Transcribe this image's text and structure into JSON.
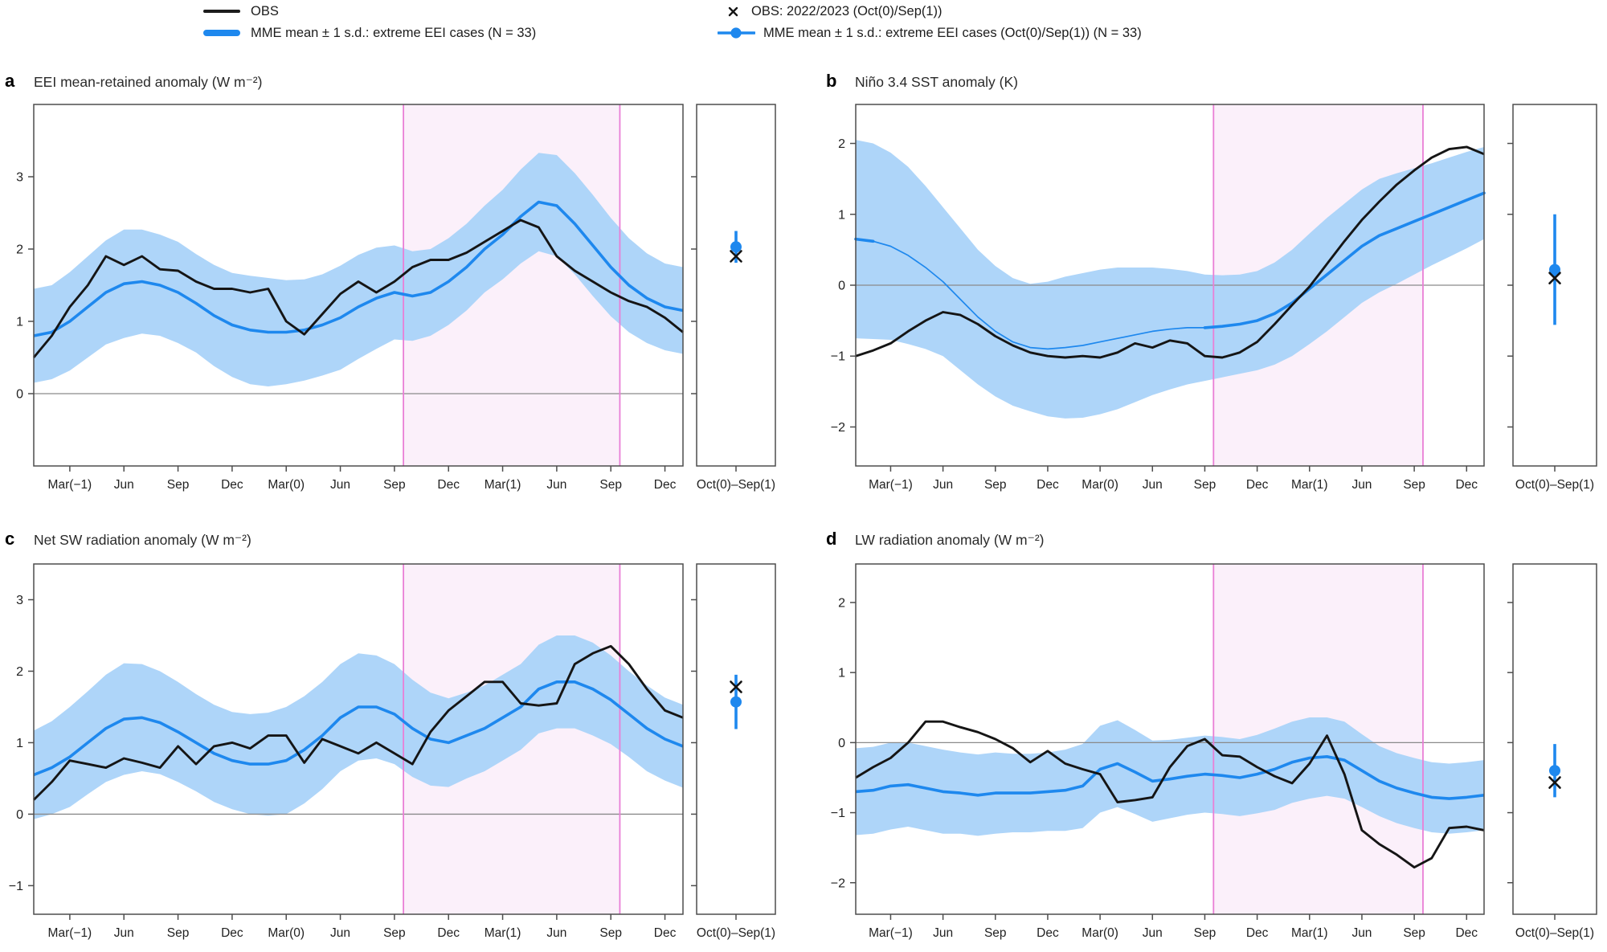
{
  "colors": {
    "obs_line": "#151515",
    "mme_line": "#1E88EE",
    "mme_band": "#AED5F9",
    "highlight_fill": "#FBF0FA",
    "highlight_edge": "#E97FD6",
    "zero_line": "#8a8a8a",
    "axis": "#4d4d4d",
    "text": "#222222"
  },
  "legend": {
    "items": [
      {
        "id": "obs",
        "marker": "black-line",
        "label": "OBS"
      },
      {
        "id": "mme",
        "marker": "blue-thick-line",
        "label": "MME mean ± 1 s.d.: extreme EEI cases (N = 33)"
      },
      {
        "id": "obs-point",
        "marker": "black-x",
        "label": "OBS: 2022/2023 (Oct(0)/Sep(1))"
      },
      {
        "id": "mme-point",
        "marker": "blue-dot-line",
        "label": "MME mean ± 1 s.d.: extreme EEI cases (Oct(0)/Sep(1)) (N = 33)"
      }
    ]
  },
  "chart_data": [
    {
      "type": "line",
      "panel_label": "a",
      "title": "EEI mean-retained anomaly (W m⁻²)",
      "n_months": 37,
      "x_tick_indices": [
        2,
        5,
        8,
        11,
        14,
        17,
        20,
        23,
        26,
        29,
        32,
        35
      ],
      "x_tick_labels": [
        "Mar(−1)",
        "Jun",
        "Sep",
        "Dec",
        "Mar(0)",
        "Jun",
        "Sep",
        "Dec",
        "Mar(1)",
        "Jun",
        "Sep",
        "Dec"
      ],
      "ylim": [
        -1.0,
        4.0
      ],
      "yticks": [
        0,
        1,
        2,
        3
      ],
      "ytick_labels": [
        "0",
        "1",
        "2",
        "3"
      ],
      "highlight_span_months": [
        20.5,
        32.5
      ],
      "series": {
        "obs": [
          0.5,
          0.8,
          1.2,
          1.5,
          1.9,
          1.78,
          1.9,
          1.72,
          1.7,
          1.55,
          1.45,
          1.45,
          1.4,
          1.45,
          1.0,
          0.82,
          1.1,
          1.38,
          1.55,
          1.4,
          1.55,
          1.75,
          1.85,
          1.85,
          1.95,
          2.1,
          2.25,
          2.4,
          2.3,
          1.9,
          1.7,
          1.55,
          1.4,
          1.28,
          1.2,
          1.05,
          0.85
        ],
        "mme_mean": [
          0.8,
          0.85,
          1.0,
          1.2,
          1.4,
          1.52,
          1.55,
          1.5,
          1.4,
          1.25,
          1.08,
          0.95,
          0.88,
          0.85,
          0.85,
          0.88,
          0.95,
          1.05,
          1.2,
          1.32,
          1.4,
          1.35,
          1.4,
          1.55,
          1.75,
          2.0,
          2.2,
          2.45,
          2.65,
          2.6,
          2.35,
          2.05,
          1.75,
          1.5,
          1.32,
          1.2,
          1.15
        ],
        "mme_sd": [
          0.65,
          0.65,
          0.68,
          0.7,
          0.72,
          0.75,
          0.72,
          0.7,
          0.7,
          0.68,
          0.7,
          0.72,
          0.75,
          0.75,
          0.72,
          0.7,
          0.7,
          0.72,
          0.72,
          0.7,
          0.65,
          0.62,
          0.6,
          0.6,
          0.6,
          0.6,
          0.62,
          0.65,
          0.68,
          0.7,
          0.7,
          0.7,
          0.68,
          0.65,
          0.62,
          0.6,
          0.6
        ]
      },
      "thin_mme_segments": [],
      "side": {
        "label": "Oct(0)–Sep(1)",
        "mme_mean": 2.03,
        "mme_sd": 0.22,
        "obs": 1.9
      }
    },
    {
      "type": "line",
      "panel_label": "b",
      "title": "Niño 3.4 SST anomaly (K)",
      "n_months": 37,
      "x_tick_indices": [
        2,
        5,
        8,
        11,
        14,
        17,
        20,
        23,
        26,
        29,
        32,
        35
      ],
      "x_tick_labels": [
        "Mar(−1)",
        "Jun",
        "Sep",
        "Dec",
        "Mar(0)",
        "Jun",
        "Sep",
        "Dec",
        "Mar(1)",
        "Jun",
        "Sep",
        "Dec"
      ],
      "ylim": [
        -2.55,
        2.55
      ],
      "yticks": [
        -2,
        -1,
        0,
        1,
        2
      ],
      "ytick_labels": [
        "−2",
        "−1",
        "0",
        "1",
        "2"
      ],
      "highlight_span_months": [
        20.5,
        32.5
      ],
      "series": {
        "obs": [
          -1.0,
          -0.92,
          -0.82,
          -0.65,
          -0.5,
          -0.38,
          -0.42,
          -0.55,
          -0.72,
          -0.85,
          -0.95,
          -1.0,
          -1.02,
          -1.0,
          -1.02,
          -0.95,
          -0.82,
          -0.88,
          -0.78,
          -0.82,
          -1.0,
          -1.02,
          -0.95,
          -0.8,
          -0.55,
          -0.28,
          -0.02,
          0.3,
          0.62,
          0.92,
          1.18,
          1.42,
          1.62,
          1.8,
          1.92,
          1.95,
          1.85
        ],
        "mme_mean": [
          0.65,
          0.62,
          0.55,
          0.42,
          0.25,
          0.05,
          -0.2,
          -0.45,
          -0.65,
          -0.8,
          -0.88,
          -0.9,
          -0.88,
          -0.85,
          -0.8,
          -0.75,
          -0.7,
          -0.65,
          -0.62,
          -0.6,
          -0.6,
          -0.58,
          -0.55,
          -0.5,
          -0.4,
          -0.25,
          -0.05,
          0.15,
          0.35,
          0.55,
          0.7,
          0.8,
          0.9,
          1.0,
          1.1,
          1.2,
          1.3
        ],
        "mme_sd": [
          1.4,
          1.38,
          1.32,
          1.25,
          1.15,
          1.05,
          1.0,
          0.95,
          0.92,
          0.9,
          0.9,
          0.95,
          1.0,
          1.02,
          1.02,
          1.0,
          0.95,
          0.9,
          0.85,
          0.8,
          0.75,
          0.72,
          0.7,
          0.7,
          0.72,
          0.75,
          0.78,
          0.8,
          0.8,
          0.8,
          0.8,
          0.78,
          0.75,
          0.72,
          0.7,
          0.68,
          0.65
        ]
      },
      "thin_mme_segments": [
        [
          1,
          20
        ]
      ],
      "side": {
        "label": "Oct(0)–Sep(1)",
        "mme_mean": 0.22,
        "mme_sd": 0.78,
        "obs": 0.1
      }
    },
    {
      "type": "line",
      "panel_label": "c",
      "title": "Net SW radiation anomaly (W m⁻²)",
      "n_months": 37,
      "x_tick_indices": [
        2,
        5,
        8,
        11,
        14,
        17,
        20,
        23,
        26,
        29,
        32,
        35
      ],
      "x_tick_labels": [
        "Mar(−1)",
        "Jun",
        "Sep",
        "Dec",
        "Mar(0)",
        "Jun",
        "Sep",
        "Dec",
        "Mar(1)",
        "Jun",
        "Sep",
        "Dec"
      ],
      "ylim": [
        -1.4,
        3.5
      ],
      "yticks": [
        -1,
        0,
        1,
        2,
        3
      ],
      "ytick_labels": [
        "−1",
        "0",
        "1",
        "2",
        "3"
      ],
      "highlight_span_months": [
        20.5,
        32.5
      ],
      "series": {
        "obs": [
          0.2,
          0.45,
          0.75,
          0.7,
          0.65,
          0.78,
          0.72,
          0.65,
          0.95,
          0.7,
          0.95,
          1.0,
          0.92,
          1.1,
          1.1,
          0.72,
          1.05,
          0.95,
          0.85,
          1.0,
          0.85,
          0.7,
          1.15,
          1.45,
          1.65,
          1.85,
          1.85,
          1.55,
          1.52,
          1.55,
          2.1,
          2.25,
          2.35,
          2.1,
          1.75,
          1.45,
          1.35
        ],
        "mme_mean": [
          0.55,
          0.65,
          0.8,
          1.0,
          1.2,
          1.33,
          1.35,
          1.28,
          1.15,
          1.0,
          0.85,
          0.75,
          0.7,
          0.7,
          0.75,
          0.9,
          1.1,
          1.35,
          1.5,
          1.5,
          1.4,
          1.2,
          1.05,
          1.0,
          1.1,
          1.2,
          1.35,
          1.5,
          1.75,
          1.85,
          1.85,
          1.75,
          1.6,
          1.4,
          1.2,
          1.05,
          0.95
        ],
        "mme_sd": [
          0.62,
          0.65,
          0.7,
          0.72,
          0.75,
          0.78,
          0.75,
          0.72,
          0.7,
          0.68,
          0.68,
          0.68,
          0.7,
          0.72,
          0.75,
          0.75,
          0.75,
          0.75,
          0.75,
          0.72,
          0.7,
          0.68,
          0.65,
          0.62,
          0.6,
          0.6,
          0.6,
          0.6,
          0.62,
          0.65,
          0.65,
          0.65,
          0.62,
          0.6,
          0.6,
          0.58,
          0.58
        ]
      },
      "thin_mme_segments": [],
      "side": {
        "label": "Oct(0)–Sep(1)",
        "mme_mean": 1.57,
        "mme_sd": 0.38,
        "obs": 1.78
      }
    },
    {
      "type": "line",
      "panel_label": "d",
      "title": "LW radiation anomaly (W m⁻²)",
      "n_months": 37,
      "x_tick_indices": [
        2,
        5,
        8,
        11,
        14,
        17,
        20,
        23,
        26,
        29,
        32,
        35
      ],
      "x_tick_labels": [
        "Mar(−1)",
        "Jun",
        "Sep",
        "Dec",
        "Mar(0)",
        "Jun",
        "Sep",
        "Dec",
        "Mar(1)",
        "Jun",
        "Sep",
        "Dec"
      ],
      "ylim": [
        -2.45,
        2.55
      ],
      "yticks": [
        -2,
        -1,
        0,
        1,
        2
      ],
      "ytick_labels": [
        "−2",
        "−1",
        "0",
        "1",
        "2"
      ],
      "highlight_span_months": [
        20.5,
        32.5
      ],
      "series": {
        "obs": [
          -0.5,
          -0.35,
          -0.22,
          0.0,
          0.3,
          0.3,
          0.22,
          0.15,
          0.05,
          -0.08,
          -0.28,
          -0.12,
          -0.3,
          -0.38,
          -0.45,
          -0.85,
          -0.82,
          -0.78,
          -0.35,
          -0.05,
          0.05,
          -0.18,
          -0.2,
          -0.35,
          -0.48,
          -0.58,
          -0.3,
          0.1,
          -0.45,
          -1.25,
          -1.45,
          -1.6,
          -1.78,
          -1.65,
          -1.22,
          -1.2,
          -1.25
        ],
        "mme_mean": [
          -0.7,
          -0.68,
          -0.62,
          -0.6,
          -0.65,
          -0.7,
          -0.72,
          -0.75,
          -0.72,
          -0.72,
          -0.72,
          -0.7,
          -0.68,
          -0.62,
          -0.38,
          -0.3,
          -0.42,
          -0.55,
          -0.52,
          -0.48,
          -0.45,
          -0.47,
          -0.5,
          -0.45,
          -0.38,
          -0.28,
          -0.22,
          -0.2,
          -0.25,
          -0.4,
          -0.55,
          -0.65,
          -0.72,
          -0.78,
          -0.8,
          -0.78,
          -0.75
        ],
        "mme_sd": [
          0.62,
          0.62,
          0.62,
          0.6,
          0.6,
          0.6,
          0.58,
          0.58,
          0.58,
          0.56,
          0.56,
          0.56,
          0.58,
          0.6,
          0.62,
          0.62,
          0.6,
          0.58,
          0.56,
          0.55,
          0.55,
          0.55,
          0.55,
          0.56,
          0.58,
          0.58,
          0.58,
          0.56,
          0.55,
          0.52,
          0.5,
          0.5,
          0.5,
          0.5,
          0.5,
          0.5,
          0.5
        ]
      },
      "thin_mme_segments": [],
      "side": {
        "label": "Oct(0)–Sep(1)",
        "mme_mean": -0.4,
        "mme_sd": 0.38,
        "obs": -0.57
      }
    }
  ]
}
